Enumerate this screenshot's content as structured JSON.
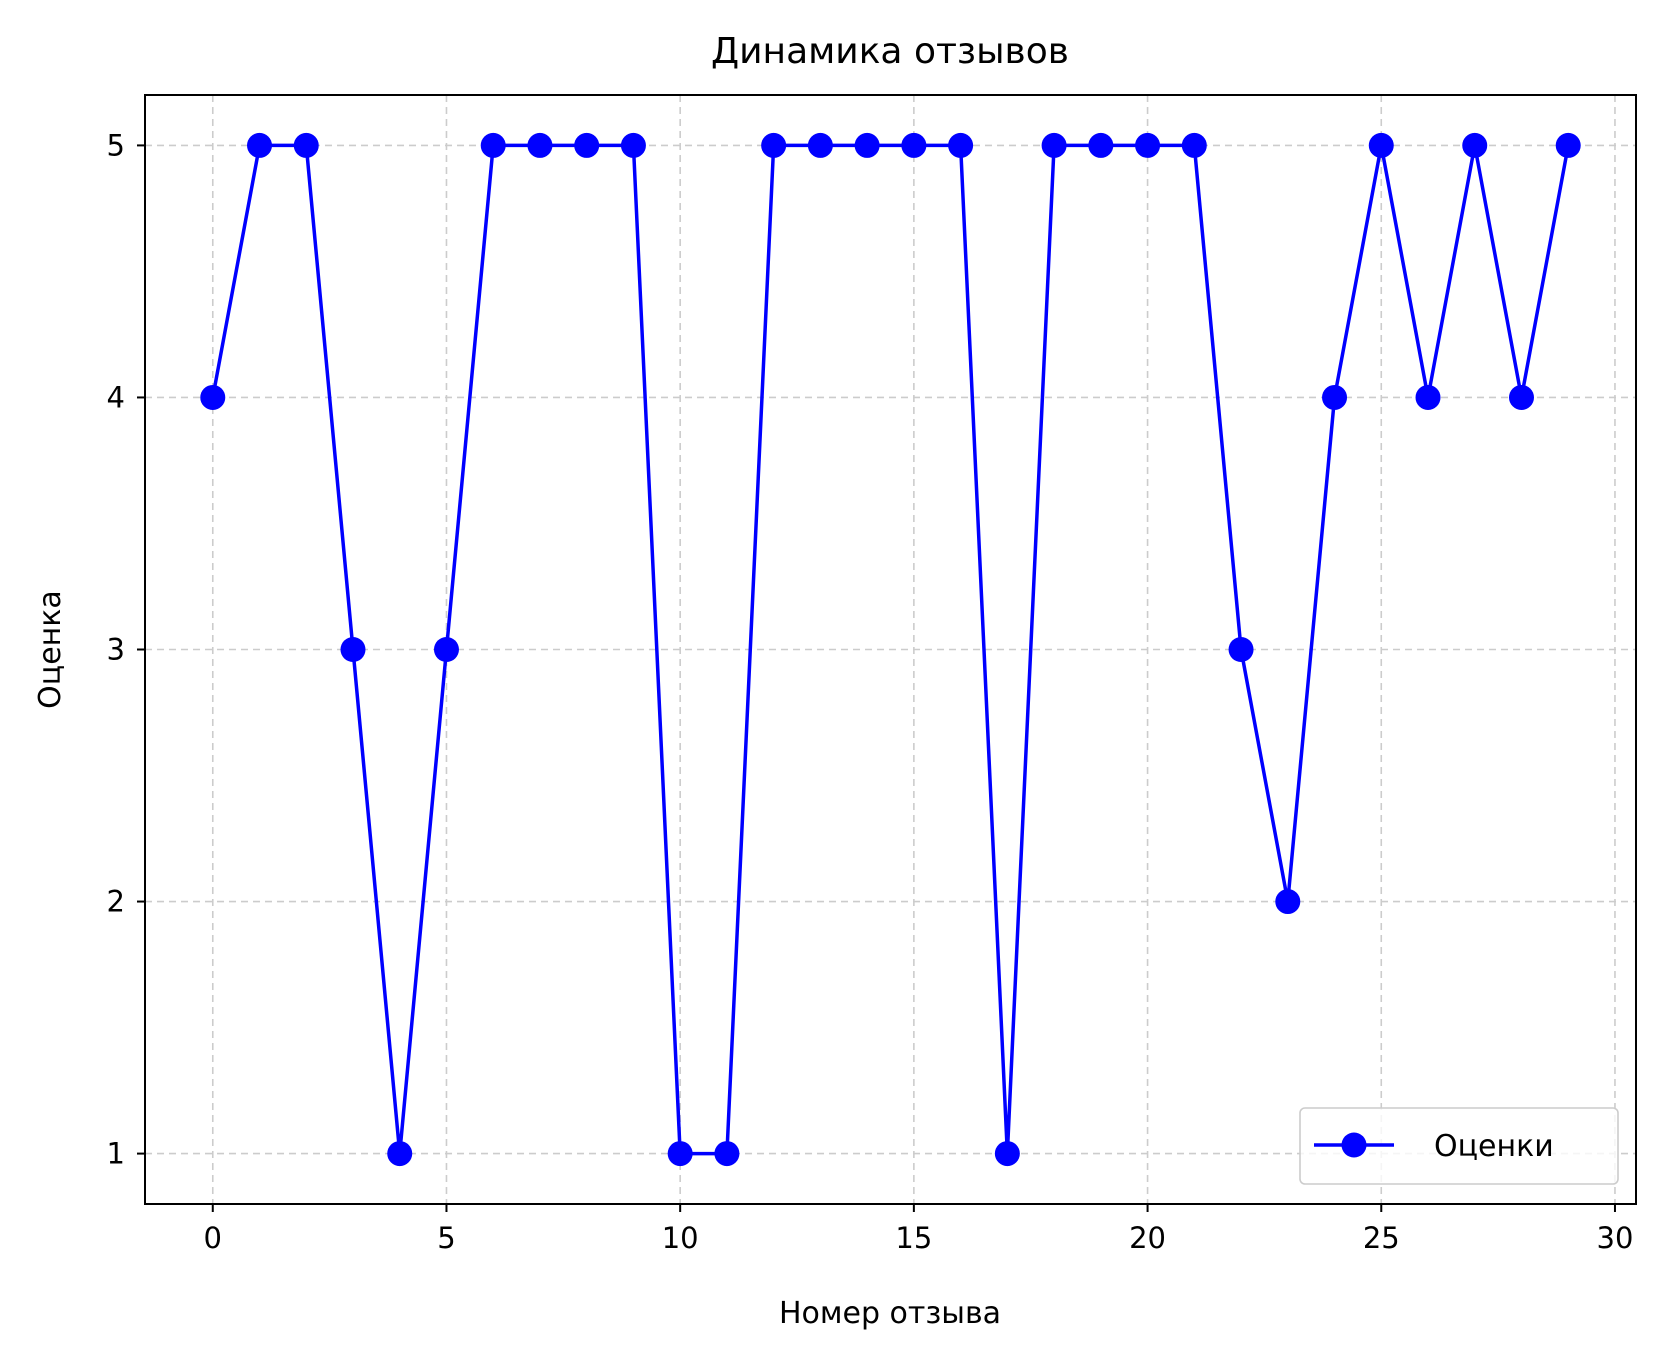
{
  "chart_data": {
    "type": "line",
    "title": "Динамика отзывов",
    "xlabel": "Номер отзыва",
    "ylabel": "Оценка",
    "xlim": [
      -1.45,
      30.45
    ],
    "ylim": [
      0.8,
      5.2
    ],
    "xticks": [
      0,
      5,
      10,
      15,
      20,
      25,
      30
    ],
    "yticks": [
      1,
      2,
      3,
      4,
      5
    ],
    "grid": true,
    "legend_position": "lower right",
    "series": [
      {
        "name": "Оценки",
        "color": "#0000ff",
        "marker": "circle",
        "x": [
          0,
          1,
          2,
          3,
          4,
          5,
          6,
          7,
          8,
          9,
          10,
          11,
          12,
          13,
          14,
          15,
          16,
          17,
          18,
          19,
          20,
          21,
          22,
          23,
          24,
          25,
          26,
          27,
          28,
          29
        ],
        "y": [
          4,
          5,
          5,
          3,
          1,
          3,
          5,
          5,
          5,
          5,
          1,
          1,
          5,
          5,
          5,
          5,
          5,
          1,
          5,
          5,
          5,
          5,
          3,
          2,
          4,
          5,
          4,
          5,
          4,
          5
        ]
      }
    ]
  }
}
